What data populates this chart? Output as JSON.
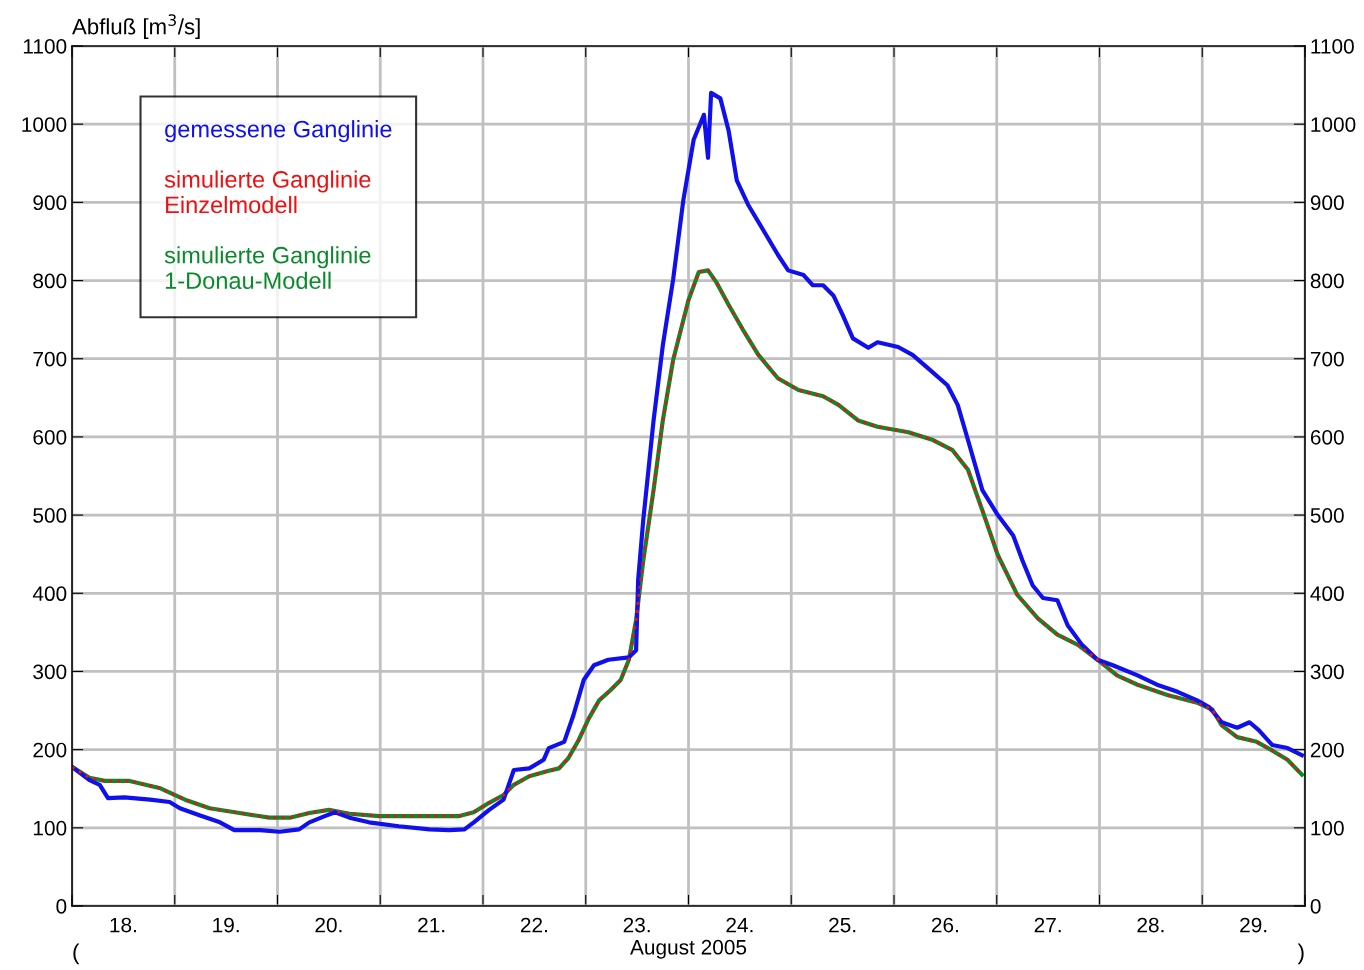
{
  "chart_data": {
    "type": "line",
    "ylabel": "Abfluß [m$^{3}$/s]",
    "xlabel": "August 2005",
    "annotations": [
      "(",
      ")"
    ],
    "xlim": [
      18,
      30
    ],
    "xticks": [
      {
        "value": 18,
        "label": null
      },
      {
        "value": 19,
        "label": null
      },
      {
        "value": 20,
        "label": null
      },
      {
        "value": 21,
        "label": null
      },
      {
        "value": 22,
        "label": null
      },
      {
        "value": 23,
        "label": null
      },
      {
        "value": 24,
        "label": null
      },
      {
        "value": 25,
        "label": null
      },
      {
        "value": 26,
        "label": null
      },
      {
        "value": 27,
        "label": null
      },
      {
        "value": 28,
        "label": null
      },
      {
        "value": 29,
        "label": null
      },
      {
        "value": 30,
        "label": null
      },
      {
        "value": 18.5,
        "label": "18."
      },
      {
        "value": 19.5,
        "label": "19."
      },
      {
        "value": 20.5,
        "label": "20."
      },
      {
        "value": 21.5,
        "label": "21."
      },
      {
        "value": 22.5,
        "label": "22."
      },
      {
        "value": 23.5,
        "label": "23."
      },
      {
        "value": 24.5,
        "label": "24."
      },
      {
        "value": 25.5,
        "label": "25."
      },
      {
        "value": 26.5,
        "label": "26."
      },
      {
        "value": 27.5,
        "label": "27."
      },
      {
        "value": 28.5,
        "label": "28."
      },
      {
        "value": 29.5,
        "label": "29."
      }
    ],
    "ylim": [
      0,
      1100
    ],
    "yticks": [
      0,
      100,
      200,
      300,
      400,
      500,
      600,
      700,
      800,
      900,
      1000,
      1100
    ],
    "y2lim": [
      0,
      1100
    ],
    "y2ticks": [
      0,
      100,
      200,
      300,
      400,
      500,
      600,
      700,
      800,
      900,
      1000,
      1100
    ],
    "grid": true,
    "legend": "top left",
    "marker": "none",
    "series": [
      {
        "name": "gemessene Ganglinie",
        "color": "#1010ee",
        "line_style": "solid",
        "x": [
          18.0,
          18.17,
          18.27,
          18.35,
          18.51,
          18.76,
          18.95,
          19.05,
          19.24,
          19.44,
          19.58,
          19.83,
          20.02,
          20.21,
          20.31,
          20.46,
          20.56,
          20.7,
          20.89,
          21.18,
          21.48,
          21.67,
          21.82,
          21.91,
          22.06,
          22.2,
          22.3,
          22.45,
          22.59,
          22.64,
          22.79,
          22.88,
          22.98,
          23.08,
          23.22,
          23.42,
          23.49,
          23.51,
          23.56,
          23.66,
          23.75,
          23.85,
          23.95,
          24.05,
          24.15,
          24.19,
          24.22,
          24.31,
          24.39,
          24.47,
          24.58,
          24.73,
          24.87,
          24.97,
          25.12,
          25.21,
          25.31,
          25.41,
          25.5,
          25.6,
          25.75,
          25.84,
          26.04,
          26.18,
          26.33,
          26.52,
          26.62,
          26.72,
          26.86,
          27.01,
          27.16,
          27.25,
          27.35,
          27.45,
          27.59,
          27.69,
          27.83,
          27.98,
          28.13,
          28.37,
          28.56,
          28.76,
          28.95,
          29.07,
          29.19,
          29.34,
          29.46,
          29.55,
          29.68,
          29.83,
          29.97
        ],
        "values": [
          178,
          161,
          155,
          138,
          139,
          136,
          133,
          125,
          116,
          107,
          97,
          97,
          95,
          98,
          107,
          115,
          120,
          113,
          107,
          102,
          98,
          97,
          98,
          107,
          123,
          136,
          174,
          176,
          187,
          202,
          210,
          244,
          289,
          308,
          315,
          318,
          327,
          417,
          494,
          621,
          717,
          801,
          903,
          980,
          1012,
          957,
          1040,
          1033,
          992,
          928,
          897,
          864,
          833,
          813,
          807,
          794,
          794,
          781,
          756,
          726,
          714,
          721,
          715,
          705,
          688,
          666,
          641,
          596,
          532,
          500,
          474,
          442,
          410,
          394,
          391,
          359,
          334,
          315,
          308,
          295,
          283,
          274,
          263,
          254,
          235,
          228,
          235,
          225,
          206,
          202,
          193
        ]
      },
      {
        "name": "simulierte Ganglinie\nEinzelmodell",
        "color": "#ee1010",
        "line_style": "dotted",
        "x": [
          18.0,
          18.17,
          18.32,
          18.56,
          18.85,
          19.1,
          19.34,
          19.63,
          19.92,
          20.12,
          20.31,
          20.5,
          20.7,
          20.99,
          21.38,
          21.77,
          21.91,
          22.06,
          22.2,
          22.3,
          22.45,
          22.64,
          22.74,
          22.83,
          22.93,
          23.03,
          23.13,
          23.24,
          23.34,
          23.42,
          23.49,
          23.56,
          23.66,
          23.75,
          23.85,
          24.0,
          24.1,
          24.19,
          24.27,
          24.39,
          24.53,
          24.68,
          24.87,
          25.07,
          25.31,
          25.46,
          25.65,
          25.84,
          26.14,
          26.38,
          26.57,
          26.72,
          26.86,
          27.01,
          27.2,
          27.4,
          27.59,
          27.79,
          27.98,
          28.17,
          28.37,
          28.66,
          28.95,
          29.1,
          29.19,
          29.34,
          29.53,
          29.68,
          29.83,
          29.97
        ],
        "values": [
          178,
          164,
          160,
          160,
          151,
          136,
          125,
          119,
          113,
          113,
          119,
          123,
          118,
          115,
          115,
          115,
          120,
          132,
          142,
          155,
          166,
          173,
          176,
          189,
          212,
          240,
          263,
          276,
          289,
          315,
          366,
          442,
          532,
          621,
          698,
          775,
          811,
          813,
          798,
          769,
          737,
          705,
          675,
          660,
          652,
          641,
          621,
          613,
          606,
          596,
          583,
          558,
          506,
          449,
          398,
          368,
          347,
          334,
          315,
          295,
          283,
          270,
          260,
          251,
          231,
          216,
          210,
          199,
          187,
          168
        ]
      },
      {
        "name": "simulierte Ganglinie\n1-Donau-Modell",
        "color": "#0a8a2a",
        "line_style": "solid",
        "x": [
          18.0,
          18.17,
          18.32,
          18.56,
          18.85,
          19.1,
          19.34,
          19.63,
          19.92,
          20.12,
          20.31,
          20.5,
          20.7,
          20.99,
          21.38,
          21.77,
          21.91,
          22.06,
          22.2,
          22.3,
          22.45,
          22.64,
          22.74,
          22.83,
          22.93,
          23.03,
          23.13,
          23.24,
          23.34,
          23.42,
          23.49,
          23.56,
          23.66,
          23.75,
          23.85,
          24.0,
          24.1,
          24.19,
          24.27,
          24.39,
          24.53,
          24.68,
          24.87,
          25.07,
          25.31,
          25.46,
          25.65,
          25.84,
          26.14,
          26.38,
          26.57,
          26.72,
          26.86,
          27.01,
          27.2,
          27.4,
          27.59,
          27.79,
          27.98,
          28.17,
          28.37,
          28.66,
          28.95,
          29.1,
          29.19,
          29.34,
          29.53,
          29.68,
          29.83,
          29.97
        ],
        "values": [
          178,
          164,
          160,
          160,
          151,
          136,
          125,
          119,
          113,
          113,
          119,
          123,
          118,
          115,
          115,
          115,
          120,
          132,
          142,
          155,
          166,
          173,
          176,
          189,
          212,
          240,
          263,
          276,
          289,
          315,
          366,
          442,
          532,
          621,
          698,
          775,
          811,
          813,
          798,
          769,
          737,
          705,
          675,
          660,
          652,
          641,
          621,
          613,
          606,
          596,
          583,
          558,
          506,
          449,
          398,
          368,
          347,
          334,
          315,
          295,
          283,
          270,
          260,
          251,
          231,
          216,
          210,
          199,
          187,
          168
        ]
      }
    ]
  }
}
